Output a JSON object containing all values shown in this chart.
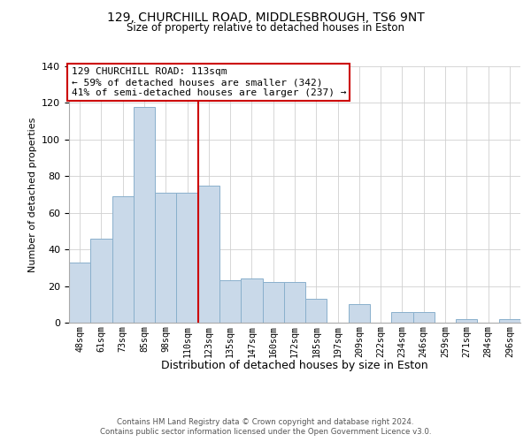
{
  "title": "129, CHURCHILL ROAD, MIDDLESBROUGH, TS6 9NT",
  "subtitle": "Size of property relative to detached houses in Eston",
  "xlabel": "Distribution of detached houses by size in Eston",
  "ylabel": "Number of detached properties",
  "bar_labels": [
    "48sqm",
    "61sqm",
    "73sqm",
    "85sqm",
    "98sqm",
    "110sqm",
    "123sqm",
    "135sqm",
    "147sqm",
    "160sqm",
    "172sqm",
    "185sqm",
    "197sqm",
    "209sqm",
    "222sqm",
    "234sqm",
    "246sqm",
    "259sqm",
    "271sqm",
    "284sqm",
    "296sqm"
  ],
  "bar_values": [
    33,
    46,
    69,
    118,
    71,
    71,
    75,
    23,
    24,
    22,
    22,
    13,
    0,
    10,
    0,
    6,
    6,
    0,
    2,
    0,
    2
  ],
  "bar_color": "#c9d9e9",
  "bar_edge_color": "#8ab0cc",
  "vline_x": 5.5,
  "vline_color": "#cc0000",
  "annotation_text_line1": "129 CHURCHILL ROAD: 113sqm",
  "annotation_text_line2": "← 59% of detached houses are smaller (342)",
  "annotation_text_line3": "41% of semi-detached houses are larger (237) →",
  "ylim": [
    0,
    140
  ],
  "yticks": [
    0,
    20,
    40,
    60,
    80,
    100,
    120,
    140
  ],
  "footer_line1": "Contains HM Land Registry data © Crown copyright and database right 2024.",
  "footer_line2": "Contains public sector information licensed under the Open Government Licence v3.0."
}
